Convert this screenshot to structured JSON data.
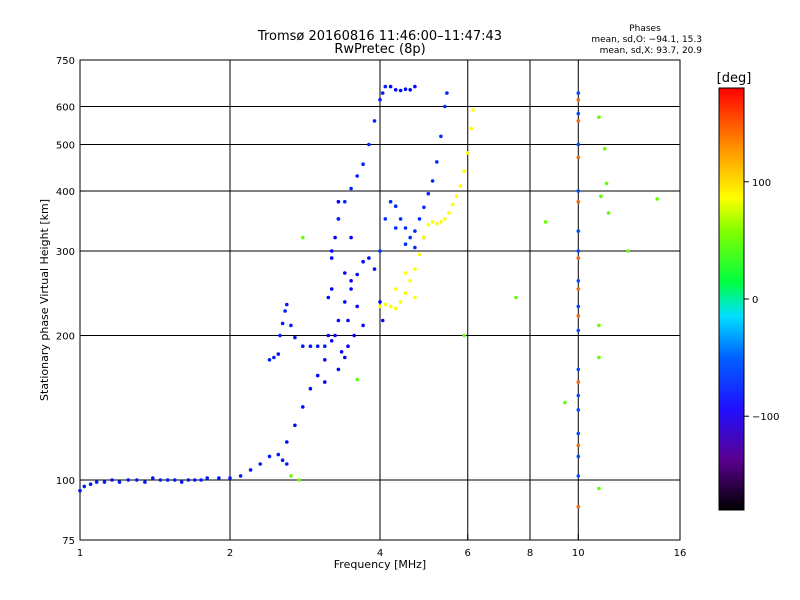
{
  "chart_data": {
    "type": "scatter",
    "title": "Tromsø 20160816 11:46:00–11:47:43",
    "subtitle": "RwPretec (8p)",
    "xlabel": "Frequency [MHz]",
    "ylabel": "Stationary phase Virtual Height [km]",
    "x_scale": "log2",
    "y_scale": "log",
    "xlim": [
      1,
      16
    ],
    "ylim": [
      75,
      750
    ],
    "x_ticks": [
      {
        "value": 1,
        "label": "1"
      },
      {
        "value": 2,
        "label": "2"
      },
      {
        "value": 4,
        "label": "4"
      },
      {
        "value": 6,
        "label": "6"
      },
      {
        "value": 8,
        "label": "8"
      },
      {
        "value": 10,
        "label": "10"
      },
      {
        "value": 16,
        "label": "16"
      }
    ],
    "y_ticks": [
      {
        "value": 75,
        "label": "75"
      },
      {
        "value": 100,
        "label": "100"
      },
      {
        "value": 200,
        "label": "200"
      },
      {
        "value": 300,
        "label": "300"
      },
      {
        "value": 400,
        "label": "400"
      },
      {
        "value": 500,
        "label": "500"
      },
      {
        "value": 600,
        "label": "600"
      },
      {
        "value": 750,
        "label": "750"
      }
    ],
    "x_grid": [
      2,
      4,
      6,
      8,
      10
    ],
    "y_grid": [
      100,
      200,
      300,
      400,
      500,
      600
    ],
    "grid": true,
    "stats": {
      "heading": "Phases",
      "line1": "mean, sd,O: −94.1, 15.3",
      "line2": "mean, sd,X:  93.7, 20.9"
    },
    "colorbar": {
      "label": "[deg]",
      "min": -180,
      "max": 180,
      "ticks": [
        {
          "value": 100,
          "label": "100"
        },
        {
          "value": 0,
          "label": "0"
        },
        {
          "value": -100,
          "label": "−100"
        }
      ]
    },
    "series": [
      {
        "phase_deg": -110,
        "points": [
          [
            1.0,
            95
          ],
          [
            1.02,
            97
          ],
          [
            1.05,
            98
          ],
          [
            1.08,
            99
          ],
          [
            1.12,
            99
          ],
          [
            1.16,
            100
          ],
          [
            1.2,
            99
          ],
          [
            1.25,
            100
          ],
          [
            1.3,
            100
          ],
          [
            1.35,
            99
          ],
          [
            1.4,
            101
          ],
          [
            1.45,
            100
          ],
          [
            1.5,
            100
          ],
          [
            1.55,
            100
          ],
          [
            1.6,
            99
          ],
          [
            1.65,
            100
          ],
          [
            1.7,
            100
          ],
          [
            1.75,
            100
          ],
          [
            1.8,
            101
          ],
          [
            1.9,
            101
          ],
          [
            2.0,
            101
          ],
          [
            2.1,
            102
          ],
          [
            2.2,
            105
          ],
          [
            2.3,
            108
          ],
          [
            2.4,
            112
          ],
          [
            2.5,
            113
          ],
          [
            2.55,
            110
          ],
          [
            2.6,
            108
          ]
        ]
      },
      {
        "phase_deg": -110,
        "points": [
          [
            2.4,
            178
          ],
          [
            2.45,
            180
          ],
          [
            2.5,
            183
          ],
          [
            2.52,
            200
          ],
          [
            2.55,
            212
          ],
          [
            2.58,
            225
          ],
          [
            2.6,
            232
          ],
          [
            2.65,
            210
          ],
          [
            2.7,
            198
          ],
          [
            2.8,
            190
          ],
          [
            2.9,
            190
          ],
          [
            3.0,
            190
          ],
          [
            3.1,
            190
          ]
        ]
      },
      {
        "phase_deg": -115,
        "points": [
          [
            2.6,
            120
          ],
          [
            2.7,
            130
          ],
          [
            2.8,
            142
          ],
          [
            2.9,
            155
          ],
          [
            3.0,
            165
          ],
          [
            3.1,
            178
          ],
          [
            3.2,
            195
          ],
          [
            3.3,
            215
          ],
          [
            3.4,
            235
          ],
          [
            3.5,
            250
          ],
          [
            3.6,
            268
          ],
          [
            3.7,
            285
          ],
          [
            3.8,
            290
          ],
          [
            3.9,
            275
          ],
          [
            4.0,
            235
          ],
          [
            4.05,
            215
          ]
        ]
      },
      {
        "phase_deg": -120,
        "points": [
          [
            3.1,
            160
          ],
          [
            3.15,
            200
          ],
          [
            3.2,
            250
          ],
          [
            3.25,
            320
          ],
          [
            3.3,
            380
          ],
          [
            3.2,
            300
          ],
          [
            3.15,
            240
          ],
          [
            3.25,
            200
          ],
          [
            3.35,
            185
          ],
          [
            3.45,
            190
          ],
          [
            3.55,
            200
          ],
          [
            3.4,
            270
          ],
          [
            3.5,
            320
          ],
          [
            3.3,
            350
          ],
          [
            3.2,
            290
          ],
          [
            3.45,
            215
          ],
          [
            3.6,
            230
          ],
          [
            3.7,
            210
          ],
          [
            3.3,
            170
          ],
          [
            3.4,
            180
          ],
          [
            3.5,
            260
          ]
        ]
      },
      {
        "phase_deg": -108,
        "points": [
          [
            3.3,
            350
          ],
          [
            3.4,
            380
          ],
          [
            3.5,
            405
          ],
          [
            3.6,
            430
          ],
          [
            3.7,
            455
          ],
          [
            3.8,
            500
          ],
          [
            3.9,
            560
          ],
          [
            4.0,
            620
          ],
          [
            4.05,
            640
          ],
          [
            4.1,
            660
          ]
        ]
      },
      {
        "phase_deg": -105,
        "points": [
          [
            4.0,
            300
          ],
          [
            4.1,
            350
          ],
          [
            4.2,
            380
          ],
          [
            4.3,
            372
          ],
          [
            4.4,
            350
          ],
          [
            4.5,
            335
          ],
          [
            4.6,
            320
          ],
          [
            4.7,
            330
          ],
          [
            4.8,
            350
          ],
          [
            4.9,
            370
          ],
          [
            5.0,
            395
          ],
          [
            5.1,
            420
          ],
          [
            5.2,
            460
          ],
          [
            5.3,
            520
          ],
          [
            5.4,
            600
          ],
          [
            5.45,
            640
          ],
          [
            4.3,
            335
          ],
          [
            4.5,
            310
          ],
          [
            4.7,
            305
          ],
          [
            4.9,
            320
          ]
        ]
      },
      {
        "phase_deg": -115,
        "points": [
          [
            4.2,
            660
          ],
          [
            4.3,
            650
          ],
          [
            4.4,
            648
          ],
          [
            4.5,
            652
          ],
          [
            4.6,
            650
          ],
          [
            4.7,
            660
          ]
        ]
      },
      {
        "phase_deg": 105,
        "points": [
          [
            4.0,
            230
          ],
          [
            4.1,
            232
          ],
          [
            4.2,
            230
          ],
          [
            4.3,
            228
          ],
          [
            4.4,
            235
          ],
          [
            4.5,
            245
          ],
          [
            4.6,
            260
          ],
          [
            4.7,
            275
          ],
          [
            4.8,
            295
          ],
          [
            4.9,
            320
          ],
          [
            5.0,
            340
          ],
          [
            5.1,
            345
          ],
          [
            5.2,
            342
          ],
          [
            5.3,
            345
          ],
          [
            5.4,
            350
          ],
          [
            5.5,
            360
          ],
          [
            5.6,
            375
          ],
          [
            5.7,
            390
          ],
          [
            5.8,
            410
          ],
          [
            5.9,
            440
          ],
          [
            6.0,
            480
          ],
          [
            6.1,
            540
          ],
          [
            6.15,
            590
          ],
          [
            4.3,
            250
          ],
          [
            4.5,
            270
          ],
          [
            4.7,
            240
          ]
        ]
      },
      {
        "phase_deg": -95,
        "points": [
          [
            10.0,
            640
          ],
          [
            10.0,
            580
          ],
          [
            10.0,
            500
          ],
          [
            10.0,
            400
          ],
          [
            10.0,
            330
          ],
          [
            10.0,
            300
          ],
          [
            10.0,
            260
          ],
          [
            10.0,
            230
          ],
          [
            10.0,
            205
          ],
          [
            10.0,
            170
          ],
          [
            10.0,
            150
          ],
          [
            10.0,
            140
          ],
          [
            10.0,
            125
          ],
          [
            10.0,
            112
          ],
          [
            10.0,
            102
          ]
        ]
      },
      {
        "phase_deg": 150,
        "points": [
          [
            10.0,
            620
          ],
          [
            10.0,
            560
          ],
          [
            10.0,
            470
          ],
          [
            10.0,
            380
          ],
          [
            10.0,
            290
          ],
          [
            10.0,
            250
          ],
          [
            10.0,
            220
          ],
          [
            10.0,
            160
          ],
          [
            10.0,
            118
          ],
          [
            10.0,
            88
          ]
        ]
      },
      {
        "phase_deg": 60,
        "points": [
          [
            2.8,
            320
          ],
          [
            3.6,
            162
          ],
          [
            2.65,
            102
          ],
          [
            2.75,
            100
          ],
          [
            5.9,
            200
          ],
          [
            7.5,
            240
          ],
          [
            8.6,
            345
          ],
          [
            9.4,
            145
          ],
          [
            11.0,
            570
          ],
          [
            11.1,
            390
          ],
          [
            11.5,
            360
          ],
          [
            11.3,
            490
          ],
          [
            11.4,
            415
          ],
          [
            11.0,
            210
          ],
          [
            11.0,
            180
          ],
          [
            12.6,
            300
          ],
          [
            14.4,
            385
          ],
          [
            11.0,
            96
          ]
        ]
      }
    ]
  }
}
